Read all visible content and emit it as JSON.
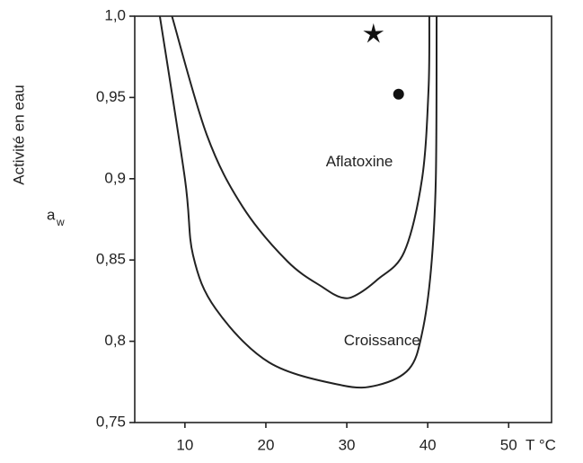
{
  "chart_data": {
    "type": "line",
    "ylabel": "Activité en eau",
    "ylabel_symbol": "a",
    "ylabel_symbol_subscript": "w",
    "xlabel": "T °C",
    "xlim": [
      3.8,
      55.3
    ],
    "xticks": [
      10,
      20,
      30,
      40,
      50
    ],
    "ylim": [
      0.75,
      1.0
    ],
    "yticks": [
      {
        "value": 0.75,
        "label": "0,75"
      },
      {
        "value": 0.8,
        "label": "0,8"
      },
      {
        "value": 0.85,
        "label": "0,85"
      },
      {
        "value": 0.9,
        "label": "0,9"
      },
      {
        "value": 0.95,
        "label": "0,95"
      },
      {
        "value": 1.0,
        "label": "1,0"
      }
    ],
    "series": [
      {
        "name": "Aflatoxine",
        "color": "#222222",
        "x": [
          8.4,
          12.7,
          17.1,
          22.7,
          27.1,
          29.3,
          31.0,
          33.8,
          37.1,
          39.3,
          40.1,
          40.2
        ],
        "values": [
          1.0,
          0.927,
          0.883,
          0.849,
          0.833,
          0.827,
          0.828,
          0.838,
          0.855,
          0.9,
          0.955,
          1.0
        ]
      },
      {
        "name": "Croissance",
        "color": "#222222",
        "x": [
          6.9,
          10.0,
          11.0,
          13.8,
          20.4,
          29.3,
          33.8,
          37.7,
          39.3,
          40.4,
          41.0,
          41.1
        ],
        "values": [
          1.0,
          0.9,
          0.853,
          0.82,
          0.787,
          0.773,
          0.773,
          0.783,
          0.805,
          0.844,
          0.9,
          1.0
        ]
      }
    ],
    "points": [
      {
        "marker": "star",
        "x": 33.3,
        "y": 0.989
      },
      {
        "marker": "circle",
        "x": 36.4,
        "y": 0.952
      }
    ]
  }
}
